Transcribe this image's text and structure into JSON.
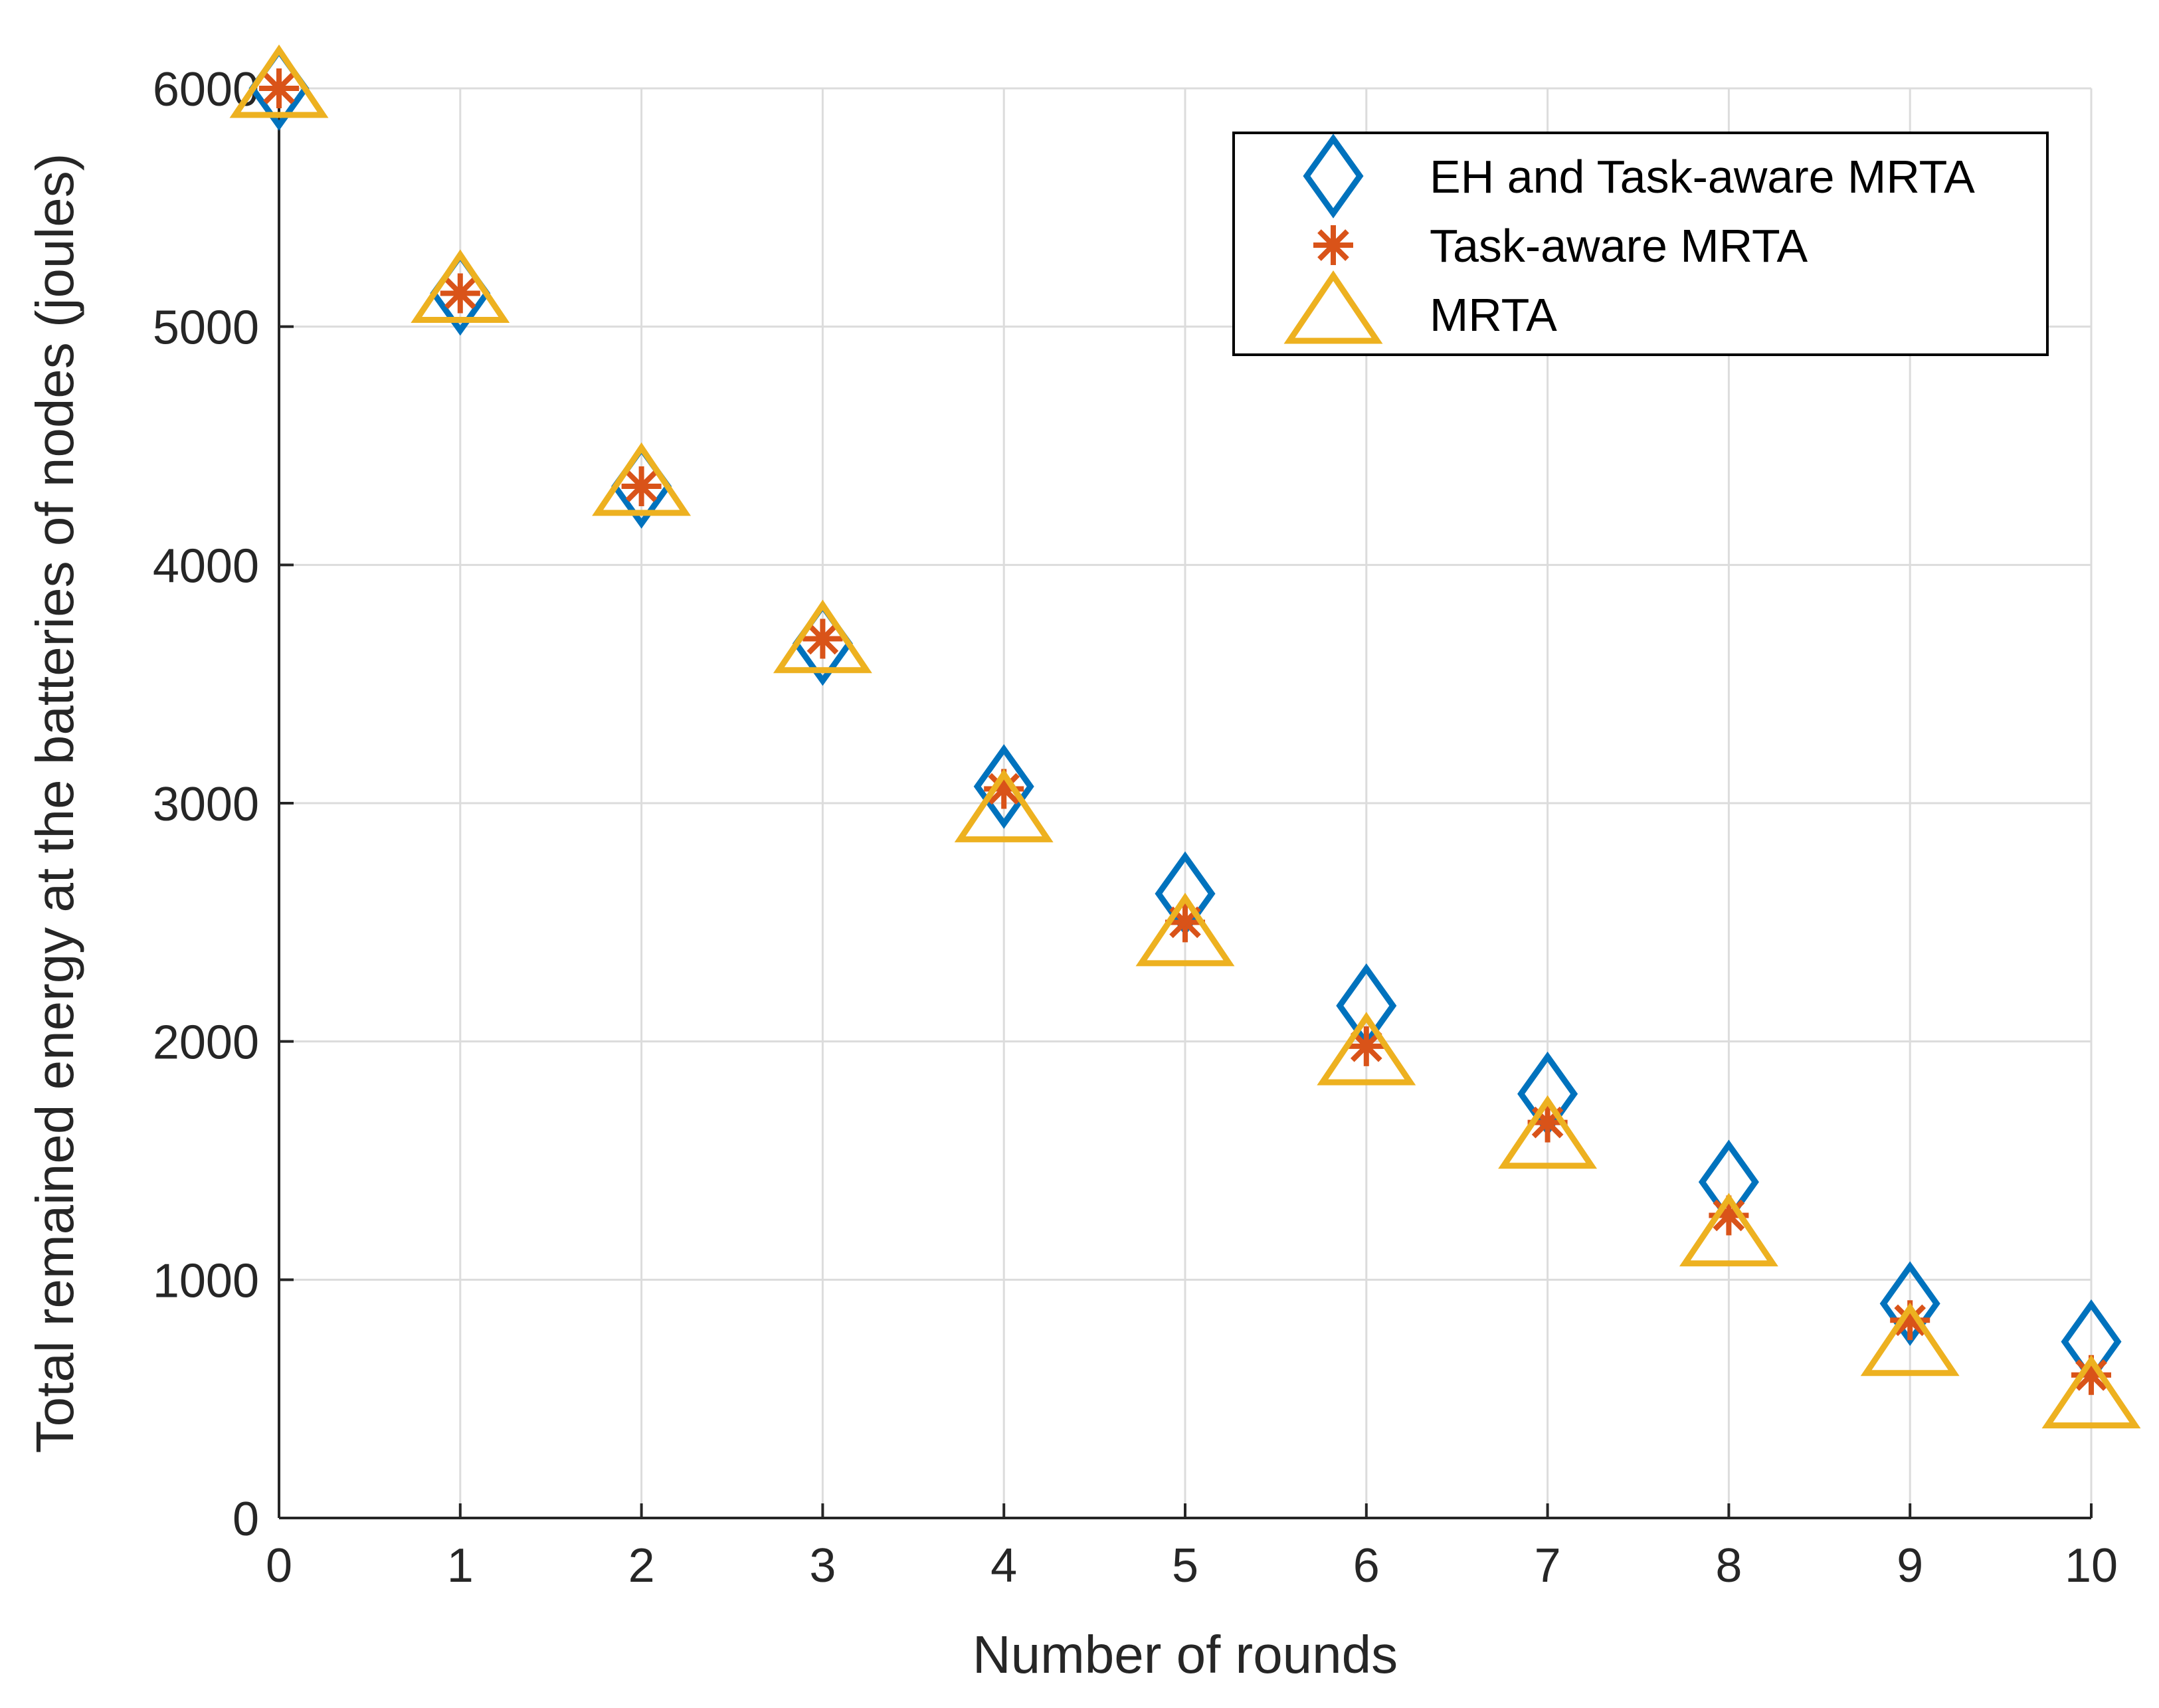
{
  "chart_data": {
    "type": "scatter",
    "title": "",
    "xlabel": "Number of rounds",
    "ylabel": "Total remained energy at the batteries of nodes (joules)",
    "xlim": [
      0,
      10
    ],
    "ylim": [
      0,
      6000
    ],
    "xticks": [
      "0",
      "1",
      "2",
      "3",
      "4",
      "5",
      "6",
      "7",
      "8",
      "9",
      "10"
    ],
    "yticks": [
      "0",
      "1000",
      "2000",
      "3000",
      "4000",
      "5000",
      "6000"
    ],
    "grid": true,
    "legend_position": "top-right",
    "x": [
      0,
      1,
      2,
      3,
      4,
      5,
      6,
      7,
      8,
      9,
      10
    ],
    "series": [
      {
        "name": "EH and Task-aware MRTA",
        "marker": "diamond",
        "color": "#0072BD",
        "values": [
          6000,
          5140,
          4330,
          3670,
          3070,
          2620,
          2150,
          1780,
          1410,
          900,
          740
        ]
      },
      {
        "name": "Task-aware MRTA",
        "marker": "asterisk",
        "color": "#D95319",
        "values": [
          6000,
          5140,
          4330,
          3690,
          3060,
          2500,
          1980,
          1660,
          1270,
          830,
          600
        ]
      },
      {
        "name": "MRTA",
        "marker": "triangle",
        "color": "#EDB120",
        "values": [
          6000,
          5140,
          4330,
          3670,
          2960,
          2440,
          1940,
          1590,
          1180,
          720,
          500
        ]
      }
    ]
  }
}
